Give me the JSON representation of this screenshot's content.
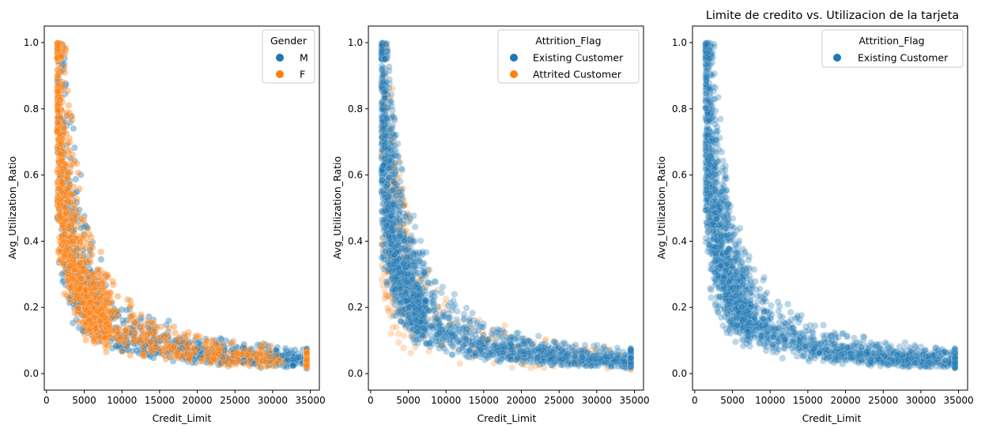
{
  "chart_data": [
    {
      "type": "scatter",
      "title": "",
      "xlabel": "Credit_Limit",
      "ylabel": "Avg_Utilization_Ratio",
      "xlim": [
        -300,
        36200
      ],
      "ylim": [
        -0.05,
        1.05
      ],
      "xticks": [
        0,
        5000,
        10000,
        15000,
        20000,
        25000,
        30000,
        35000
      ],
      "yticks": [
        0.0,
        0.2,
        0.4,
        0.6,
        0.8,
        1.0
      ],
      "legend": {
        "title": "Gender",
        "placement": "top-right"
      },
      "series": [
        {
          "name": "M",
          "color": "#1f77b4",
          "opacity": 0.4,
          "draw_order": 1
        },
        {
          "name": "F",
          "color": "#ff7f0e",
          "opacity": 0.4,
          "draw_order": 2
        }
      ]
    },
    {
      "type": "scatter",
      "title": "",
      "xlabel": "Credit_Limit",
      "ylabel": "Avg_Utilization_Ratio",
      "xlim": [
        -300,
        36200
      ],
      "ylim": [
        -0.05,
        1.05
      ],
      "xticks": [
        0,
        5000,
        10000,
        15000,
        20000,
        25000,
        30000,
        35000
      ],
      "yticks": [
        0.0,
        0.2,
        0.4,
        0.6,
        0.8,
        1.0
      ],
      "legend": {
        "title": "Attrition_Flag",
        "placement": "top-right"
      },
      "series": [
        {
          "name": "Existing Customer",
          "color": "#1f77b4",
          "opacity": 0.3,
          "draw_order": 2
        },
        {
          "name": "Attrited Customer",
          "color": "#ff7f0e",
          "opacity": 0.25,
          "draw_order": 1
        }
      ]
    },
    {
      "type": "scatter",
      "title": "Limite de credito vs. Utilizacion de la tarjeta",
      "xlabel": "Credit_Limit",
      "ylabel": "Avg_Utilization_Ratio",
      "xlim": [
        -300,
        36200
      ],
      "ylim": [
        -0.05,
        1.05
      ],
      "xticks": [
        0,
        5000,
        10000,
        15000,
        20000,
        25000,
        30000,
        35000
      ],
      "yticks": [
        0.0,
        0.2,
        0.4,
        0.6,
        0.8,
        1.0
      ],
      "legend": {
        "title": "Attrition_Flag",
        "placement": "top-right"
      },
      "series": [
        {
          "name": "Existing Customer",
          "color": "#1f77b4",
          "opacity": 0.3,
          "draw_order": 1
        }
      ]
    }
  ]
}
